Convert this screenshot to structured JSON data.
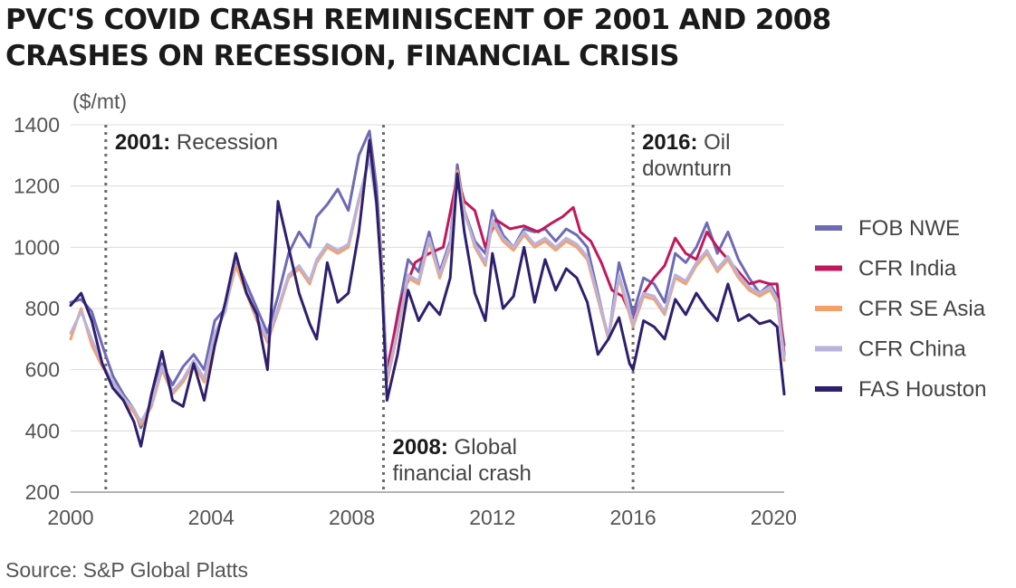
{
  "title_lines": [
    "PVC'S COVID CRASH REMINISCENT OF 2001 AND 2008",
    "CRASHES ON RECESSION, FINANCIAL CRISIS"
  ],
  "source": "Source: S&P Global Platts",
  "chart_data": {
    "type": "line",
    "title": "PVC'S COVID CRASH REMINISCENT OF 2001 AND 2008 CRASHES ON RECESSION, FINANCIAL CRISIS",
    "ylabel": "($/mt)",
    "xlabel": "",
    "xlim": [
      2000,
      2020.3
    ],
    "ylim": [
      200,
      1400
    ],
    "x_ticks": [
      2000,
      2004,
      2008,
      2012,
      2016,
      2020
    ],
    "x_tick_labels": [
      "2000",
      "2004",
      "2008",
      "2012",
      "2016",
      "2020"
    ],
    "y_ticks": [
      200,
      400,
      600,
      800,
      1000,
      1200,
      1400
    ],
    "y_tick_labels": [
      "200",
      "400",
      "600",
      "800",
      "1000",
      "1200",
      "1400"
    ],
    "grid": "horizontal",
    "legend_placement": "right",
    "annotations": [
      {
        "x": 2001.0,
        "bold": "2001:",
        "text": [
          "Recession"
        ],
        "label_pos": "top"
      },
      {
        "x": 2008.9,
        "bold": "2008:",
        "text": [
          "Global",
          "financial crash"
        ],
        "label_pos": "bottom"
      },
      {
        "x": 2016.0,
        "bold": "2016:",
        "text": [
          "Oil",
          "downturn"
        ],
        "label_pos": "top"
      }
    ],
    "series": [
      {
        "name": "FOB NWE",
        "color": "#6e6bb5",
        "x": [
          2000.0,
          2000.3,
          2000.6,
          2000.9,
          2001.2,
          2001.5,
          2001.8,
          2002.0,
          2002.3,
          2002.6,
          2002.9,
          2003.2,
          2003.5,
          2003.8,
          2004.1,
          2004.4,
          2004.7,
          2005.0,
          2005.3,
          2005.6,
          2005.9,
          2006.2,
          2006.5,
          2006.8,
          2007.0,
          2007.3,
          2007.6,
          2007.9,
          2008.2,
          2008.5,
          2008.7,
          2008.85,
          2009.0,
          2009.3,
          2009.6,
          2009.9,
          2010.2,
          2010.5,
          2010.8,
          2011.0,
          2011.2,
          2011.5,
          2011.8,
          2012.0,
          2012.3,
          2012.6,
          2012.9,
          2013.2,
          2013.5,
          2013.8,
          2014.1,
          2014.4,
          2014.7,
          2015.0,
          2015.3,
          2015.6,
          2015.9,
          2016.0,
          2016.3,
          2016.6,
          2016.9,
          2017.2,
          2017.5,
          2017.8,
          2018.1,
          2018.4,
          2018.7,
          2019.0,
          2019.3,
          2019.6,
          2019.9,
          2020.1,
          2020.3
        ],
        "y": [
          820,
          830,
          790,
          680,
          580,
          520,
          470,
          410,
          500,
          620,
          550,
          610,
          650,
          600,
          760,
          800,
          960,
          880,
          800,
          720,
          840,
          980,
          1050,
          1000,
          1100,
          1140,
          1190,
          1120,
          1300,
          1380,
          1200,
          950,
          580,
          780,
          960,
          920,
          1050,
          920,
          1020,
          1270,
          1120,
          1020,
          980,
          1120,
          1040,
          1000,
          1060,
          1050,
          1060,
          1020,
          1060,
          1040,
          1000,
          850,
          700,
          950,
          830,
          780,
          900,
          880,
          820,
          980,
          950,
          1000,
          1080,
          980,
          1050,
          960,
          900,
          850,
          880,
          840,
          680
        ]
      },
      {
        "name": "CFR India",
        "color": "#c2185b",
        "x": [
          2009.0,
          2009.4,
          2009.8,
          2010.2,
          2010.6,
          2011.0,
          2011.2,
          2011.5,
          2011.8,
          2012.1,
          2012.5,
          2012.9,
          2013.3,
          2013.7,
          2014.0,
          2014.3,
          2014.5,
          2014.8,
          2015.1,
          2015.4,
          2015.7,
          2016.0,
          2016.3,
          2016.6,
          2016.9,
          2017.2,
          2017.5,
          2017.8,
          2018.1,
          2018.4,
          2018.7,
          2019.0,
          2019.3,
          2019.6,
          2019.9,
          2020.1,
          2020.3
        ],
        "y": [
          600,
          830,
          950,
          980,
          1000,
          1230,
          1150,
          1120,
          1000,
          1090,
          1060,
          1070,
          1050,
          1080,
          1100,
          1130,
          1050,
          1020,
          950,
          860,
          840,
          760,
          850,
          900,
          940,
          1030,
          980,
          960,
          1050,
          1000,
          960,
          920,
          880,
          890,
          880,
          880,
          650
        ]
      },
      {
        "name": "CFR SE Asia",
        "color": "#f5a06b",
        "x": [
          2000.0,
          2000.3,
          2000.6,
          2000.9,
          2001.2,
          2001.5,
          2001.8,
          2002.0,
          2002.3,
          2002.6,
          2002.9,
          2003.2,
          2003.5,
          2003.8,
          2004.1,
          2004.4,
          2004.7,
          2005.0,
          2005.3,
          2005.6,
          2005.9,
          2006.2,
          2006.5,
          2006.8,
          2007.0,
          2007.3,
          2007.6,
          2007.9,
          2008.2,
          2008.5,
          2008.7,
          2008.85,
          2009.0,
          2009.3,
          2009.6,
          2009.9,
          2010.2,
          2010.5,
          2010.8,
          2011.0,
          2011.2,
          2011.5,
          2011.8,
          2012.0,
          2012.3,
          2012.6,
          2012.9,
          2013.2,
          2013.5,
          2013.8,
          2014.1,
          2014.4,
          2014.7,
          2015.0,
          2015.3,
          2015.6,
          2015.9,
          2016.0,
          2016.3,
          2016.6,
          2016.9,
          2017.2,
          2017.5,
          2017.8,
          2018.1,
          2018.4,
          2018.7,
          2019.0,
          2019.3,
          2019.6,
          2019.9,
          2020.1,
          2020.3
        ],
        "y": [
          700,
          800,
          680,
          610,
          560,
          500,
          460,
          420,
          480,
          600,
          520,
          560,
          620,
          560,
          700,
          800,
          940,
          850,
          760,
          690,
          790,
          900,
          930,
          880,
          950,
          1000,
          980,
          1000,
          1150,
          1300,
          1150,
          940,
          560,
          720,
          900,
          880,
          1020,
          900,
          1000,
          1250,
          1120,
          1000,
          940,
          1080,
          1020,
          990,
          1040,
          1000,
          1020,
          990,
          1020,
          1000,
          960,
          830,
          700,
          900,
          780,
          740,
          840,
          830,
          780,
          900,
          880,
          940,
          980,
          920,
          960,
          900,
          860,
          840,
          860,
          820,
          630
        ]
      },
      {
        "name": "CFR China",
        "color": "#b9b3dc",
        "x": [
          2000.0,
          2000.3,
          2000.6,
          2000.9,
          2001.2,
          2001.5,
          2001.8,
          2002.0,
          2002.3,
          2002.6,
          2002.9,
          2003.2,
          2003.5,
          2003.8,
          2004.1,
          2004.4,
          2004.7,
          2005.0,
          2005.3,
          2005.6,
          2005.9,
          2006.2,
          2006.5,
          2006.8,
          2007.0,
          2007.3,
          2007.6,
          2007.9,
          2008.2,
          2008.5,
          2008.7,
          2008.85,
          2009.0,
          2009.3,
          2009.6,
          2009.9,
          2010.2,
          2010.5,
          2010.8,
          2011.0,
          2011.2,
          2011.5,
          2011.8,
          2012.0,
          2012.3,
          2012.6,
          2012.9,
          2013.2,
          2013.5,
          2013.8,
          2014.1,
          2014.4,
          2014.7,
          2015.0,
          2015.3,
          2015.6,
          2015.9,
          2016.0,
          2016.3,
          2016.6,
          2016.9,
          2017.2,
          2017.5,
          2017.8,
          2018.1,
          2018.4,
          2018.7,
          2019.0,
          2019.3,
          2019.6,
          2019.9,
          2020.1,
          2020.3
        ],
        "y": [
          720,
          790,
          700,
          620,
          560,
          510,
          470,
          430,
          490,
          610,
          530,
          570,
          630,
          570,
          720,
          790,
          970,
          860,
          770,
          700,
          800,
          910,
          940,
          890,
          960,
          1010,
          990,
          1010,
          1160,
          1290,
          1140,
          930,
          570,
          730,
          910,
          890,
          1030,
          910,
          1010,
          1240,
          1110,
          1010,
          950,
          1090,
          1030,
          1000,
          1050,
          1010,
          1030,
          1000,
          1030,
          1010,
          970,
          840,
          710,
          910,
          790,
          750,
          850,
          840,
          790,
          910,
          890,
          950,
          990,
          930,
          970,
          910,
          870,
          850,
          870,
          830,
          640
        ]
      },
      {
        "name": "FAS Houston",
        "color": "#2e1f6d",
        "x": [
          2000.0,
          2000.3,
          2000.6,
          2000.9,
          2001.2,
          2001.5,
          2001.8,
          2002.0,
          2002.3,
          2002.6,
          2002.9,
          2003.2,
          2003.5,
          2003.8,
          2004.1,
          2004.4,
          2004.7,
          2005.0,
          2005.3,
          2005.6,
          2005.9,
          2006.2,
          2006.5,
          2006.8,
          2007.0,
          2007.3,
          2007.6,
          2007.9,
          2008.2,
          2008.5,
          2008.7,
          2008.85,
          2009.0,
          2009.3,
          2009.6,
          2009.9,
          2010.2,
          2010.5,
          2010.8,
          2011.0,
          2011.2,
          2011.5,
          2011.8,
          2012.0,
          2012.3,
          2012.6,
          2012.9,
          2013.2,
          2013.5,
          2013.8,
          2014.1,
          2014.4,
          2014.7,
          2015.0,
          2015.3,
          2015.6,
          2015.9,
          2016.0,
          2016.3,
          2016.6,
          2016.9,
          2017.2,
          2017.5,
          2017.8,
          2018.1,
          2018.4,
          2018.7,
          2019.0,
          2019.3,
          2019.6,
          2019.9,
          2020.1,
          2020.3
        ],
        "y": [
          810,
          850,
          760,
          620,
          540,
          500,
          430,
          350,
          520,
          660,
          500,
          480,
          620,
          500,
          680,
          820,
          980,
          850,
          780,
          600,
          1150,
          1000,
          850,
          750,
          700,
          950,
          820,
          850,
          1050,
          1350,
          1150,
          900,
          500,
          650,
          860,
          760,
          820,
          780,
          900,
          1240,
          1050,
          850,
          760,
          980,
          800,
          840,
          1000,
          820,
          960,
          860,
          930,
          900,
          820,
          650,
          700,
          770,
          620,
          600,
          760,
          740,
          700,
          830,
          780,
          850,
          800,
          760,
          880,
          760,
          780,
          750,
          760,
          740,
          520
        ]
      }
    ]
  }
}
